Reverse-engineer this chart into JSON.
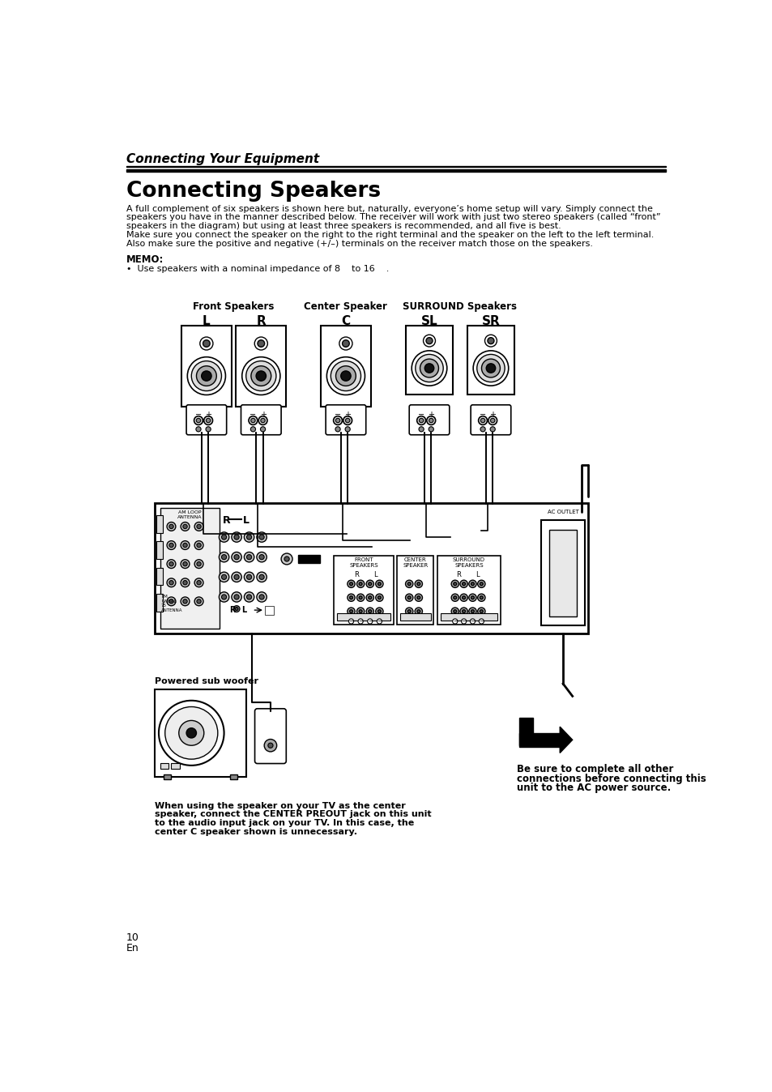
{
  "page_number": "10",
  "language": "En",
  "section_title": "Connecting Your Equipment",
  "page_title": "Connecting Speakers",
  "body_text_1": "A full complement of six speakers is shown here but, naturally, everyone’s home setup will vary. Simply connect the",
  "body_text_2": "speakers you have in the manner described below. The receiver will work with just two stereo speakers (called “front”",
  "body_text_3": "speakers in the diagram) but using at least three speakers is recommended, and all five is best.",
  "body_text_4": "Make sure you connect the speaker on the right to the right terminal and the speaker on the left to the left terminal.",
  "body_text_5": "Also make sure the positive and negative (+/–) terminals on the receiver match those on the speakers.",
  "memo_title": "MEMO:",
  "memo_bullet": "•  Use speakers with a nominal impedance of 8    to 16    .",
  "subwoofer_label": "Powered sub woofer",
  "note_text_1": "When using the speaker on your TV as the center",
  "note_text_2": "speaker, connect the CENTER PREOUT jack on this unit",
  "note_text_3": "to the audio input jack on your TV. In this case, the",
  "note_text_4": "center C speaker shown is unnecessary.",
  "warning_text_1": "Be sure to complete all other",
  "warning_text_2": "connections before connecting this",
  "warning_text_3": "unit to the AC power source.",
  "bg_color": "#ffffff",
  "text_color": "#000000"
}
